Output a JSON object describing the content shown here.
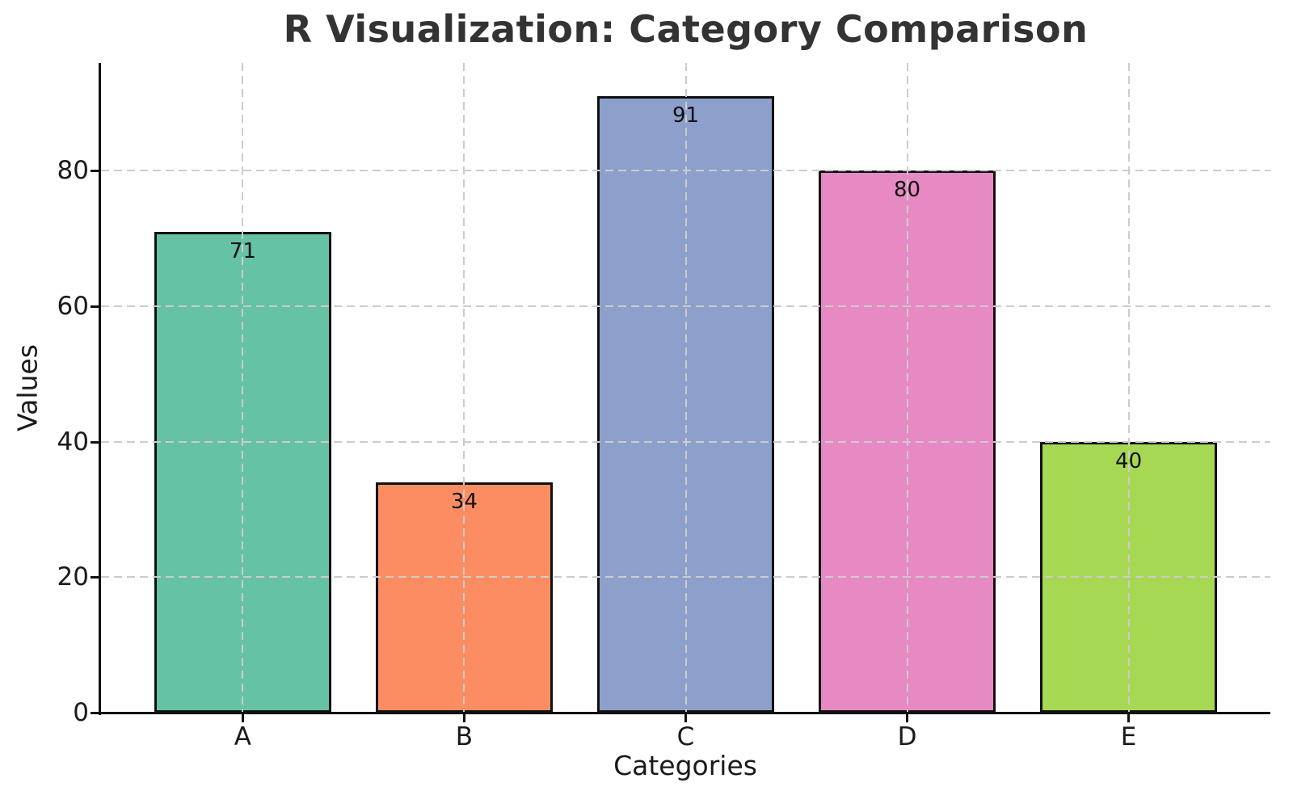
{
  "chart_data": {
    "type": "bar",
    "title": "R Visualization: Category Comparison",
    "xlabel": "Categories",
    "ylabel": "Values",
    "categories": [
      "A",
      "B",
      "C",
      "D",
      "E"
    ],
    "values": [
      71,
      34,
      91,
      80,
      40
    ],
    "value_labels": [
      "71",
      "34",
      "91",
      "80",
      "40"
    ],
    "bar_colors": [
      "#66C2A5",
      "#FC8D62",
      "#8DA0CB",
      "#E78AC3",
      "#A6D854"
    ],
    "bar_edge_color": "#111111",
    "title_color": "#333333",
    "tick_label_color": "#1a1a1a",
    "grid_color": "#cccccc",
    "grid": "dashed, horizontal and vertical, drawn above bars",
    "legend": "none",
    "yticks": [
      0,
      20,
      40,
      60,
      80
    ],
    "ylim": [
      0,
      95.9
    ],
    "xlim": [
      -0.64,
      4.64
    ],
    "bar_width": 0.8,
    "background": "#ffffff"
  }
}
